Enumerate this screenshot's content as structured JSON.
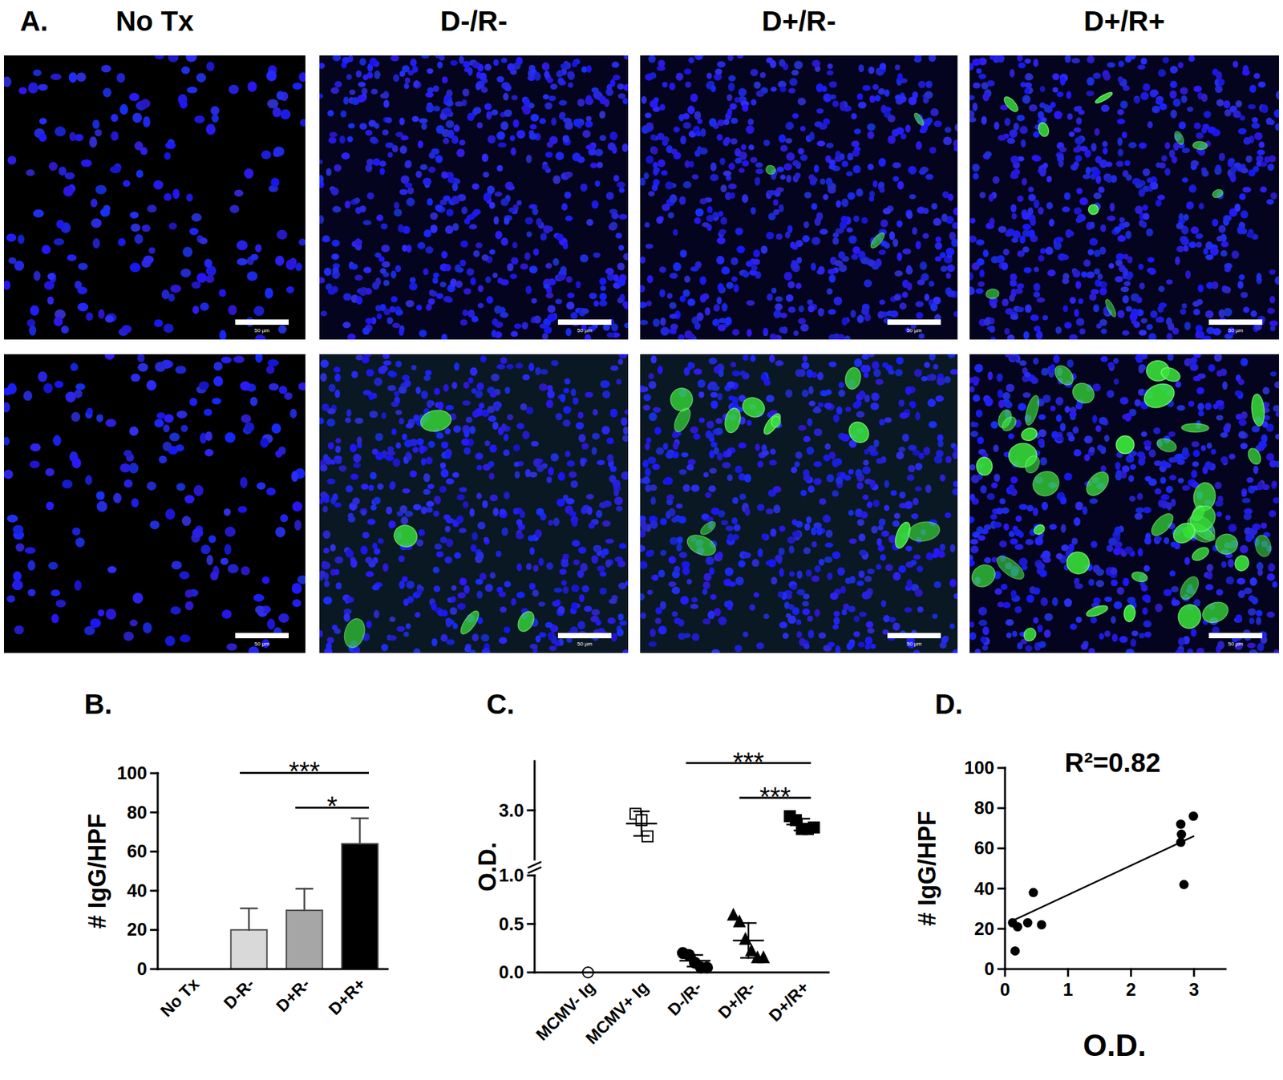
{
  "micrographs": {
    "label": "A.",
    "columns": [
      "No Tx",
      "D-/R-",
      "D+/R-",
      "D+/R+"
    ],
    "scale_bar": "50 µm"
  },
  "chart_data": [
    {
      "type": "bar",
      "title": "B.",
      "y_label": "# IgG/HPF",
      "categories": [
        "No Tx",
        "D-R-",
        "D+R-",
        "D+R+"
      ],
      "values": [
        0,
        20,
        30,
        64
      ],
      "errors": [
        0,
        11,
        11,
        13
      ],
      "colors": [
        "#ffffff",
        "#d9d9d9",
        "#a6a6a6",
        "#000000"
      ],
      "ylim": [
        0,
        100
      ],
      "yticks": [
        0,
        20,
        40,
        60,
        80,
        100
      ],
      "annotations": [
        {
          "text": "***",
          "from": 1,
          "to": 3
        },
        {
          "text": "*",
          "from": 2,
          "to": 3
        }
      ]
    },
    {
      "type": "dot",
      "title": "C.",
      "y_label": "O.D.",
      "ylim": [
        0,
        4
      ],
      "axis_break": [
        1,
        2
      ],
      "yticks": [
        {
          "value": 0,
          "label": "0.0"
        },
        0.5,
        {
          "value": 1,
          "label": "1.0"
        },
        {
          "value": 3,
          "label": "3.0"
        }
      ],
      "groups": [
        {
          "label": "MCMV- Ig",
          "marker": "open-circle",
          "values": [
            0.0
          ],
          "mean": null,
          "error": null
        },
        {
          "label": "MCMV+ Ig",
          "marker": "open-square",
          "values": [
            2.93,
            2.8,
            2.47
          ],
          "mean": 2.73,
          "error": 0.25
        },
        {
          "label": "D-/R-",
          "marker": "circle",
          "values": [
            0.2,
            0.18,
            0.1,
            0.05,
            0.05
          ],
          "mean": 0.12,
          "error": 0.06
        },
        {
          "label": "D+/R-",
          "marker": "triangle",
          "values": [
            0.59,
            0.52,
            0.34,
            0.22,
            0.15,
            0.15
          ],
          "mean": 0.33,
          "error": 0.18
        },
        {
          "label": "D+/R+",
          "marker": "square",
          "values": [
            2.88,
            2.8,
            2.62,
            2.62,
            2.65
          ],
          "mean": 2.71,
          "error": 0.12
        }
      ],
      "annotations": [
        {
          "text": "***",
          "from": 3,
          "to": 4
        },
        {
          "text": "***",
          "from": 2,
          "to": 4
        }
      ]
    },
    {
      "type": "scatter",
      "title": "D.",
      "x_label": "O.D.",
      "y_label": "# IgG/HPF",
      "x": [
        0.12,
        0.16,
        0.2,
        0.36,
        0.45,
        0.58,
        2.79,
        2.99,
        2.8,
        2.79,
        2.84
      ],
      "y": [
        23,
        9,
        21,
        23,
        38,
        22,
        72,
        76,
        67,
        63,
        42
      ],
      "color": "#000000",
      "xlim": [
        0,
        3.5
      ],
      "xticks": [
        0,
        1,
        2,
        3
      ],
      "ylim": [
        0,
        100
      ],
      "yticks": [
        0,
        20,
        40,
        60,
        80,
        100
      ],
      "trendline": {
        "slope": 14.6,
        "intercept": 22.3
      },
      "annotations": [
        {
          "text": "R²=0.82"
        }
      ]
    }
  ]
}
